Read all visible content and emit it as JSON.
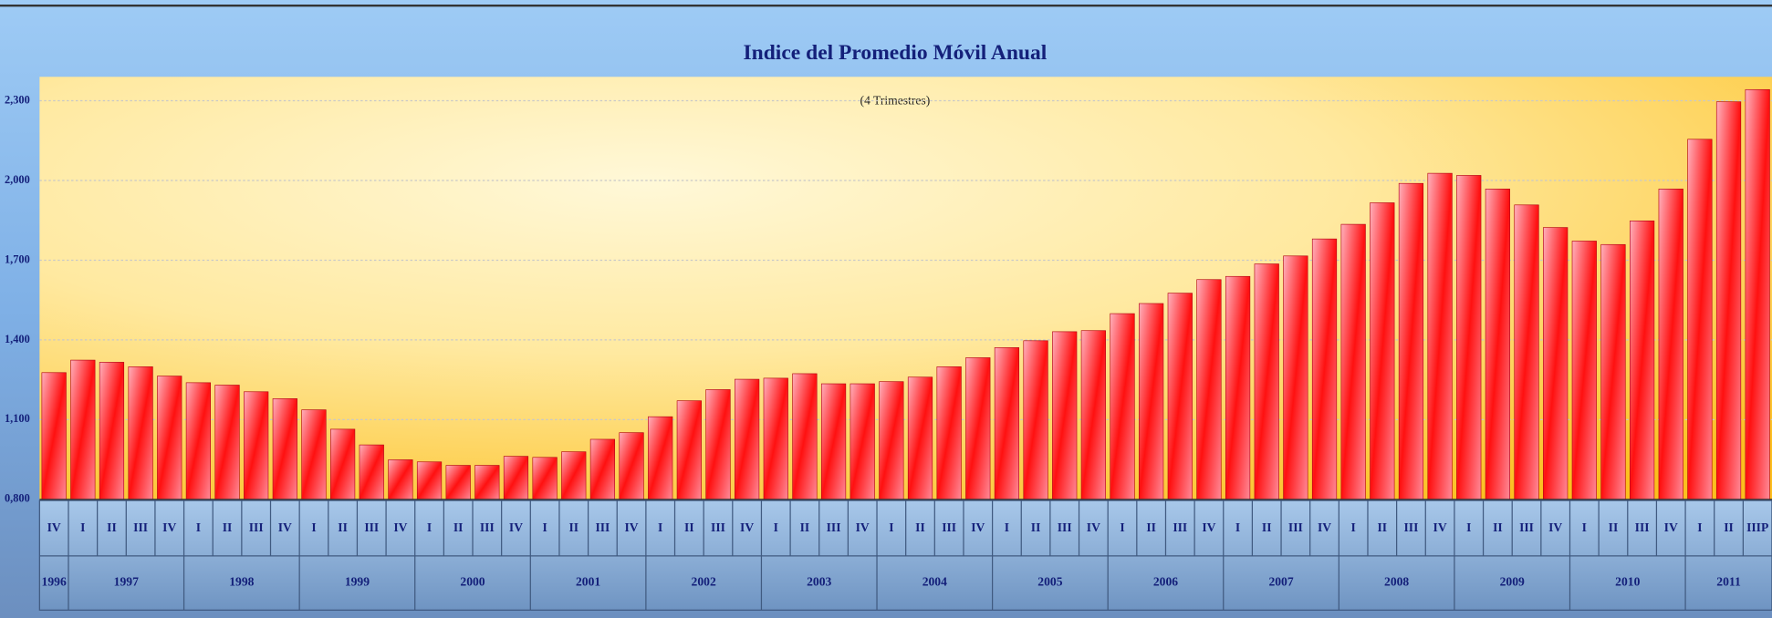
{
  "chart_data": {
    "type": "bar",
    "title": "Indice del Promedio Móvil Anual",
    "subtitle": "(4 Trimestres)",
    "categories": [
      "IV",
      "I",
      "II",
      "III",
      "IV",
      "I",
      "II",
      "III",
      "IV",
      "I",
      "II",
      "III",
      "IV",
      "I",
      "II",
      "III",
      "IV",
      "I",
      "II",
      "III",
      "IV",
      "I",
      "II",
      "III",
      "IV",
      "I",
      "II",
      "III",
      "IV",
      "I",
      "II",
      "III",
      "IV",
      "I",
      "II",
      "III",
      "IV",
      "I",
      "II",
      "III",
      "IV",
      "I",
      "II",
      "III",
      "IV",
      "I",
      "II",
      "III",
      "IV",
      "I",
      "II",
      "III",
      "IV",
      "I",
      "II",
      "III",
      "IV",
      "I",
      "II",
      "IIIP"
    ],
    "years": [
      "1996",
      "1997",
      "1998",
      "1999",
      "2000",
      "2001",
      "2002",
      "2003",
      "2004",
      "2005",
      "2006",
      "2007",
      "2008",
      "2009",
      "2010",
      "2011"
    ],
    "values": [
      1.277,
      1.324,
      1.316,
      1.299,
      1.264,
      1.239,
      1.23,
      1.205,
      1.179,
      1.137,
      1.064,
      1.005,
      0.949,
      0.941,
      0.928,
      0.928,
      0.962,
      0.958,
      0.979,
      1.026,
      1.051,
      1.111,
      1.171,
      1.213,
      1.252,
      1.256,
      1.273,
      1.235,
      1.235,
      1.243,
      1.26,
      1.299,
      1.333,
      1.371,
      1.397,
      1.431,
      1.435,
      1.499,
      1.537,
      1.576,
      1.627,
      1.639,
      1.686,
      1.716,
      1.78,
      1.835,
      1.916,
      1.989,
      2.027,
      2.019,
      1.968,
      1.908,
      1.823,
      1.772,
      1.759,
      1.848,
      1.968,
      2.155,
      2.296,
      2.342
    ],
    "color": "#ff0000",
    "ylim": [
      0.8,
      2.39
    ],
    "yticks": [
      {
        "value": 0.8,
        "label": "0,800"
      },
      {
        "value": 1.1,
        "label": "1,100"
      },
      {
        "value": 1.4,
        "label": "1,400"
      },
      {
        "value": 1.7,
        "label": "1,700"
      },
      {
        "value": 2.0,
        "label": "2,000"
      },
      {
        "value": 2.3,
        "label": "2,300"
      }
    ],
    "grid": true
  }
}
